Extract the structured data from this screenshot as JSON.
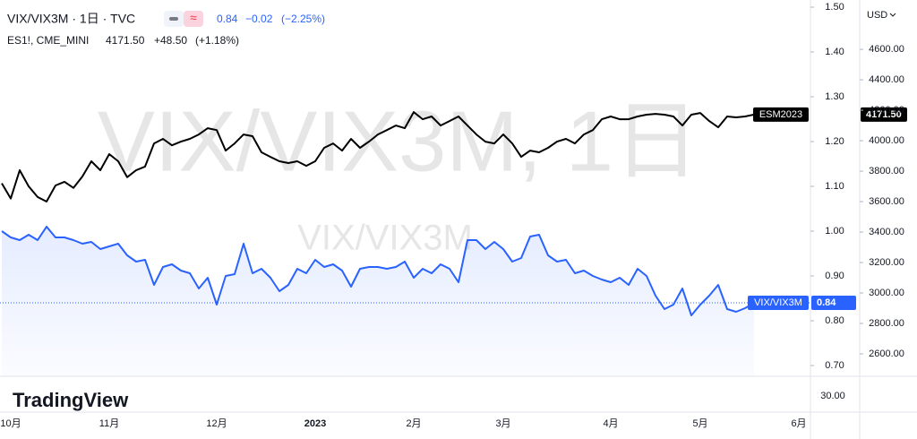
{
  "header": {
    "symbol": "VIX/VIX3M · 1日 · TVC",
    "last": "0.84",
    "change": "−0.02",
    "change_pct": "(−2.25%)",
    "compare_symbol": "ES1!, CME_MINI",
    "compare_last": "4171.50",
    "compare_change": "+48.50",
    "compare_change_pct": "(+1.18%)"
  },
  "watermark": {
    "main": "VIX/VIX3M, 1日",
    "sub": "VIX/VIX3M"
  },
  "currency": "USD",
  "logo": "TradingView",
  "lower_pane": {
    "ytick_label": "30.00"
  },
  "chart_data": {
    "type": "line",
    "categories": [
      null,
      "10月",
      null,
      null,
      null,
      null,
      null,
      null,
      null,
      null,
      null,
      null,
      "11月",
      null,
      null,
      null,
      null,
      null,
      null,
      null,
      null,
      null,
      null,
      null,
      "12月",
      null,
      null,
      null,
      null,
      null,
      null,
      null,
      null,
      null,
      null,
      "2023",
      null,
      null,
      null,
      null,
      null,
      null,
      null,
      null,
      null,
      null,
      "2月",
      null,
      null,
      null,
      null,
      null,
      null,
      null,
      null,
      null,
      "3月",
      null,
      null,
      null,
      null,
      null,
      null,
      null,
      null,
      null,
      null,
      null,
      "4月",
      null,
      null,
      null,
      null,
      null,
      null,
      null,
      null,
      null,
      "5月",
      null,
      null,
      null,
      null,
      null,
      null,
      null,
      null,
      null,
      null,
      "6月"
    ],
    "series": [
      {
        "name": "VIX/VIX3M",
        "color": "#2962ff",
        "axis": "y",
        "values": [
          1.0,
          0.986,
          0.98,
          0.992,
          0.98,
          1.01,
          0.986,
          0.986,
          0.98,
          0.972,
          0.976,
          0.96,
          0.966,
          0.972,
          0.946,
          0.932,
          0.936,
          0.88,
          0.92,
          0.926,
          0.912,
          0.906,
          0.872,
          0.896,
          0.836,
          0.9,
          0.904,
          0.972,
          0.906,
          0.916,
          0.896,
          0.866,
          0.88,
          0.916,
          0.906,
          0.936,
          0.92,
          0.926,
          0.912,
          0.876,
          0.916,
          0.92,
          0.92,
          0.916,
          0.92,
          0.932,
          0.896,
          0.916,
          0.906,
          0.926,
          0.916,
          0.886,
          0.98,
          0.98,
          0.96,
          0.976,
          0.96,
          0.932,
          0.94,
          0.988,
          0.992,
          0.946,
          0.932,
          0.936,
          0.906,
          0.912,
          0.9,
          0.892,
          0.886,
          0.896,
          0.88,
          0.916,
          0.9,
          0.856,
          0.826,
          0.836,
          0.872,
          0.812,
          0.836,
          0.856,
          0.88,
          0.826,
          0.82,
          0.828,
          0.84,
          null,
          null,
          null,
          null,
          null
        ]
      },
      {
        "name": "ESM2023",
        "color": "#000000",
        "axis": "y2",
        "values": [
          3720,
          3620,
          3806,
          3700,
          3630,
          3600,
          3706,
          3730,
          3690,
          3765,
          3865,
          3806,
          3912,
          3865,
          3760,
          3806,
          3830,
          3982,
          4012,
          3970,
          3994,
          4012,
          4041,
          4082,
          4070,
          3935,
          3982,
          4041,
          4030,
          3924,
          3894,
          3865,
          3853,
          3865,
          3835,
          3865,
          3953,
          3982,
          3935,
          4012,
          3953,
          3994,
          4041,
          4070,
          4100,
          4082,
          4188,
          4141,
          4159,
          4100,
          4129,
          4159,
          4100,
          4041,
          3994,
          3982,
          4041,
          3982,
          3894,
          3935,
          3924,
          3953,
          3994,
          4012,
          3982,
          4041,
          4070,
          4141,
          4159,
          4141,
          4141,
          4159,
          4171,
          4176,
          4171,
          4159,
          4100,
          4171,
          4182,
          4129,
          4088,
          4159,
          4153,
          4159,
          4171.5,
          null,
          null,
          null,
          null,
          null
        ]
      }
    ],
    "ylim": [
      0.676,
      1.516
    ],
    "yticks": [
      {
        "value": 1.5,
        "label": "1.50"
      },
      {
        "value": 1.4,
        "label": "1.40"
      },
      {
        "value": 1.3,
        "label": "1.30"
      },
      {
        "value": 1.2,
        "label": "1.20"
      },
      {
        "value": 1.1,
        "label": "1.10"
      },
      {
        "value": 1.0,
        "label": "1.00"
      },
      {
        "value": 0.9,
        "label": "0.90"
      },
      {
        "value": 0.8,
        "label": "0.80"
      },
      {
        "value": 0.7,
        "label": "0.70"
      }
    ],
    "y2lim": [
      2453,
      4924
    ],
    "y2ticks": [
      {
        "value": 4600,
        "label": "4600.00"
      },
      {
        "value": 4400,
        "label": "4400.00"
      },
      {
        "value": 4200,
        "label": "4200.00"
      },
      {
        "value": 4000,
        "label": "4000.00"
      },
      {
        "value": 3800,
        "label": "3800.00"
      },
      {
        "value": 3600,
        "label": "3600.00"
      },
      {
        "value": 3400,
        "label": "3400.00"
      },
      {
        "value": 3200,
        "label": "3200.00"
      },
      {
        "value": 3000,
        "label": "3000.00"
      },
      {
        "value": 2800,
        "label": "2800.00"
      },
      {
        "value": 2600,
        "label": "2600.00"
      }
    ],
    "grid": false
  }
}
